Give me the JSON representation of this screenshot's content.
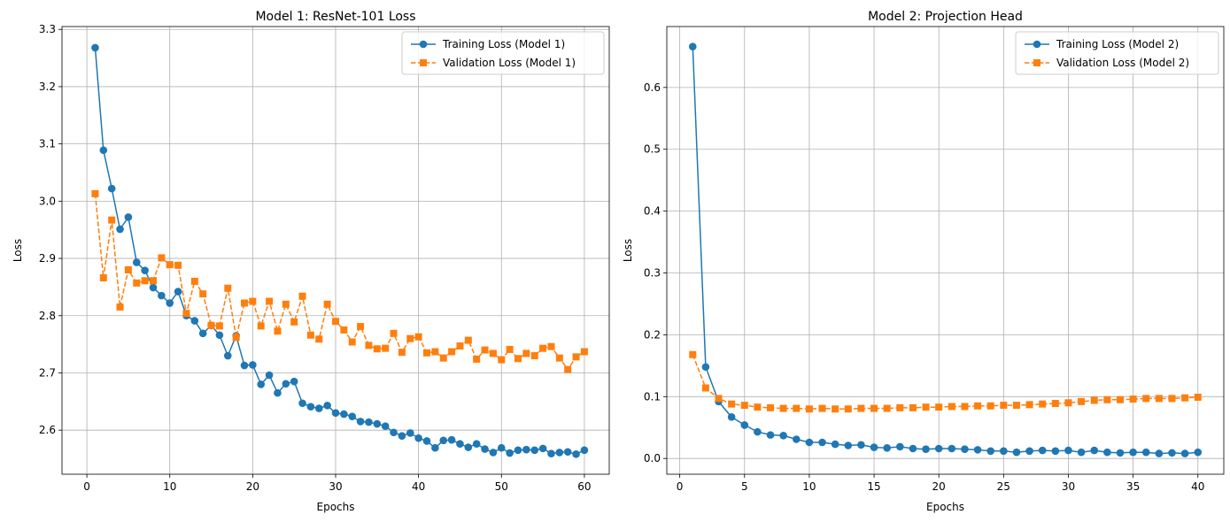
{
  "chart_data": [
    {
      "type": "line",
      "title": "Model 1: ResNet-101 Loss",
      "xlabel": "Epochs",
      "ylabel": "Loss",
      "xlim": [
        -3,
        63
      ],
      "ylim": [
        2.523,
        3.305
      ],
      "xticks": [
        0,
        10,
        20,
        30,
        40,
        50,
        60
      ],
      "yticks": [
        2.6,
        2.7,
        2.8,
        2.9,
        3.0,
        3.1,
        3.2,
        3.3
      ],
      "ytick_decimals": 1,
      "grid": true,
      "legend_position": "upper-right",
      "x": [
        1,
        2,
        3,
        4,
        5,
        6,
        7,
        8,
        9,
        10,
        11,
        12,
        13,
        14,
        15,
        16,
        17,
        18,
        19,
        20,
        21,
        22,
        23,
        24,
        25,
        26,
        27,
        28,
        29,
        30,
        31,
        32,
        33,
        34,
        35,
        36,
        37,
        38,
        39,
        40,
        41,
        42,
        43,
        44,
        45,
        46,
        47,
        48,
        49,
        50,
        51,
        52,
        53,
        54,
        55,
        56,
        57,
        58,
        59,
        60
      ],
      "series": [
        {
          "name": "Training Loss (Model 1)",
          "color": "#1f77b4",
          "marker": "circle",
          "line_style": "solid",
          "values": [
            3.268,
            3.089,
            3.022,
            2.951,
            2.972,
            2.893,
            2.879,
            2.849,
            2.835,
            2.822,
            2.842,
            2.8,
            2.791,
            2.769,
            2.783,
            2.766,
            2.73,
            2.765,
            2.713,
            2.714,
            2.68,
            2.696,
            2.665,
            2.681,
            2.685,
            2.647,
            2.641,
            2.638,
            2.643,
            2.63,
            2.628,
            2.624,
            2.615,
            2.614,
            2.611,
            2.607,
            2.596,
            2.59,
            2.595,
            2.586,
            2.581,
            2.569,
            2.582,
            2.583,
            2.576,
            2.57,
            2.576,
            2.567,
            2.561,
            2.569,
            2.56,
            2.565,
            2.566,
            2.565,
            2.568,
            2.559,
            2.561,
            2.562,
            2.558,
            2.565
          ]
        },
        {
          "name": "Validation Loss (Model 1)",
          "color": "#ff7f0e",
          "marker": "square",
          "line_style": "dashed",
          "values": [
            3.013,
            2.866,
            2.967,
            2.815,
            2.88,
            2.857,
            2.861,
            2.861,
            2.901,
            2.889,
            2.888,
            2.804,
            2.86,
            2.838,
            2.783,
            2.782,
            2.848,
            2.762,
            2.822,
            2.825,
            2.782,
            2.825,
            2.773,
            2.82,
            2.789,
            2.834,
            2.766,
            2.759,
            2.82,
            2.79,
            2.775,
            2.754,
            2.781,
            2.748,
            2.742,
            2.743,
            2.769,
            2.736,
            2.76,
            2.763,
            2.735,
            2.737,
            2.726,
            2.737,
            2.747,
            2.757,
            2.724,
            2.74,
            2.734,
            2.723,
            2.741,
            2.725,
            2.734,
            2.73,
            2.743,
            2.746,
            2.726,
            2.706,
            2.728,
            2.737
          ]
        }
      ]
    },
    {
      "type": "line",
      "title": "Model 2: Projection Head",
      "xlabel": "Epochs",
      "ylabel": "Loss",
      "xlim": [
        -1,
        42
      ],
      "ylim": [
        -0.0255,
        0.6985
      ],
      "xticks": [
        0,
        5,
        10,
        15,
        20,
        25,
        30,
        35,
        40
      ],
      "yticks": [
        0.0,
        0.1,
        0.2,
        0.3,
        0.4,
        0.5,
        0.6
      ],
      "ytick_decimals": 1,
      "grid": true,
      "legend_position": "upper-right",
      "x": [
        1,
        2,
        3,
        4,
        5,
        6,
        7,
        8,
        9,
        10,
        11,
        12,
        13,
        14,
        15,
        16,
        17,
        18,
        19,
        20,
        21,
        22,
        23,
        24,
        25,
        26,
        27,
        28,
        29,
        30,
        31,
        32,
        33,
        34,
        35,
        36,
        37,
        38,
        39,
        40
      ],
      "series": [
        {
          "name": "Training Loss (Model 2)",
          "color": "#1f77b4",
          "marker": "circle",
          "line_style": "solid",
          "values": [
            0.666,
            0.148,
            0.092,
            0.067,
            0.054,
            0.043,
            0.038,
            0.037,
            0.031,
            0.026,
            0.026,
            0.023,
            0.021,
            0.022,
            0.018,
            0.017,
            0.019,
            0.016,
            0.015,
            0.016,
            0.016,
            0.015,
            0.014,
            0.012,
            0.012,
            0.01,
            0.012,
            0.013,
            0.012,
            0.013,
            0.01,
            0.013,
            0.01,
            0.009,
            0.01,
            0.01,
            0.008,
            0.009,
            0.008,
            0.01
          ]
        },
        {
          "name": "Validation Loss (Model 2)",
          "color": "#ff7f0e",
          "marker": "square",
          "line_style": "dashed",
          "values": [
            0.168,
            0.114,
            0.097,
            0.088,
            0.086,
            0.083,
            0.082,
            0.081,
            0.081,
            0.08,
            0.081,
            0.08,
            0.08,
            0.081,
            0.081,
            0.081,
            0.082,
            0.082,
            0.083,
            0.083,
            0.084,
            0.084,
            0.085,
            0.085,
            0.086,
            0.086,
            0.087,
            0.088,
            0.089,
            0.09,
            0.092,
            0.094,
            0.095,
            0.095,
            0.096,
            0.097,
            0.097,
            0.097,
            0.098,
            0.099
          ]
        }
      ]
    }
  ]
}
